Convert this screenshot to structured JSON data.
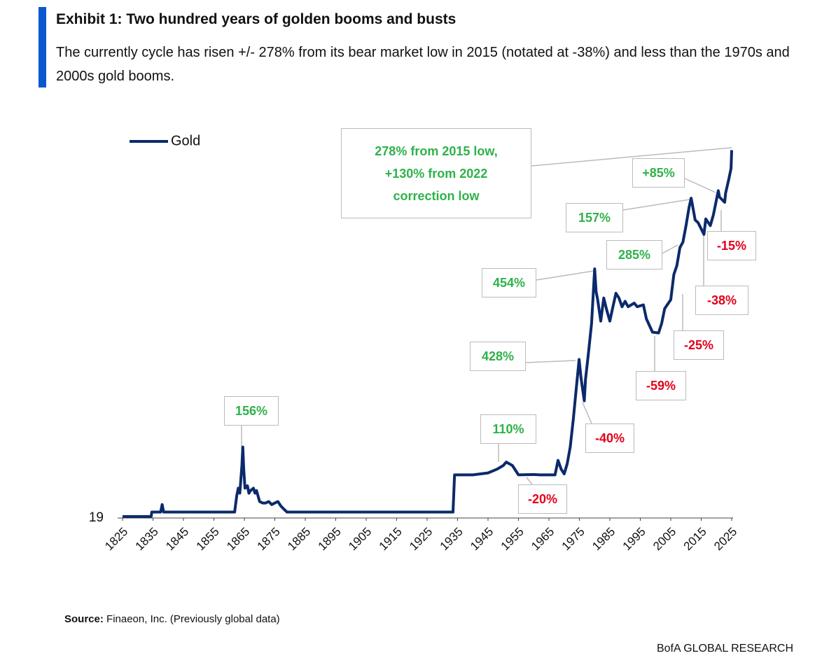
{
  "header": {
    "title": "Exhibit 1: Two hundred years of golden booms and busts",
    "subtitle": "The currently cycle has risen +/- 278% from its bear market low in 2015 (notated at -38%) and less than the 1970s and 2000s gold booms."
  },
  "chart_data": {
    "type": "line",
    "log_y": true,
    "x": [
      1825,
      1834.4,
      1834.6,
      1837.5,
      1838,
      1838.5,
      1861.8,
      1862.5,
      1863,
      1863.5,
      1864.2,
      1864.5,
      1864.8,
      1865.2,
      1866,
      1866.5,
      1867,
      1868,
      1868.5,
      1869,
      1870,
      1871,
      1872,
      1873,
      1874,
      1875,
      1876,
      1877,
      1878,
      1879,
      1933.5,
      1934,
      1940,
      1945,
      1948,
      1950,
      1951,
      1953,
      1955,
      1960,
      1962,
      1967,
      1968,
      1969,
      1970,
      1971,
      1972,
      1973,
      1974,
      1974.9,
      1975.5,
      1976.6,
      1977,
      1978,
      1979,
      1980,
      1980.5,
      1981,
      1982,
      1983,
      1984,
      1985,
      1986,
      1987,
      1988,
      1989,
      1990,
      1991,
      1993,
      1994,
      1996,
      1997,
      1999,
      2001,
      2002,
      2003,
      2005,
      2006,
      2007,
      2008,
      2009,
      2010,
      2011,
      2011.7,
      2012,
      2013,
      2014,
      2015.9,
      2016.5,
      2018,
      2019,
      2020.6,
      2021,
      2022.7,
      2023,
      2024,
      2024.8,
      2025
    ],
    "series": [
      {
        "name": "Gold",
        "color": "#0b2a6b",
        "values": [
          19.4,
          19.4,
          20.67,
          20.67,
          23,
          20.67,
          20.67,
          26,
          29,
          27,
          40,
          52,
          38,
          29,
          30,
          27,
          28,
          29,
          27,
          28,
          24,
          23.5,
          23.5,
          24,
          23,
          23.5,
          24,
          22.5,
          21.5,
          20.67,
          20.67,
          35,
          35,
          36,
          38,
          40,
          42,
          40,
          35,
          35.2,
          35,
          35,
          43,
          38,
          35.5,
          41,
          52,
          77,
          120,
          180,
          140,
          100,
          135,
          200,
          300,
          650,
          470,
          420,
          310,
          430,
          360,
          310,
          380,
          460,
          430,
          380,
          410,
          380,
          400,
          380,
          390,
          320,
          265,
          262,
          300,
          370,
          420,
          600,
          680,
          880,
          950,
          1200,
          1550,
          1770,
          1650,
          1300,
          1250,
          1060,
          1320,
          1200,
          1400,
          1970,
          1800,
          1670,
          1900,
          2300,
          2700,
          3500
        ]
      }
    ],
    "xlim": [
      1825,
      2025
    ],
    "xticks": [
      1825,
      1835,
      1845,
      1855,
      1865,
      1875,
      1885,
      1895,
      1905,
      1915,
      1925,
      1935,
      1945,
      1955,
      1965,
      1975,
      1985,
      1995,
      2005,
      2015,
      2025
    ],
    "ylim": [
      19,
      4000
    ],
    "yticks": [
      19
    ],
    "legend": "top-left",
    "annotations": [
      {
        "text": "278%  from 2015 low,\n+130% from 2022\ncorrection low",
        "color": "#2eb24a"
      },
      {
        "text": "+85%",
        "color": "#2eb24a"
      },
      {
        "text": "157%",
        "color": "#2eb24a"
      },
      {
        "text": "285%",
        "color": "#2eb24a"
      },
      {
        "text": "454%",
        "color": "#2eb24a"
      },
      {
        "text": "428%",
        "color": "#2eb24a"
      },
      {
        "text": "156%",
        "color": "#2eb24a"
      },
      {
        "text": "110%",
        "color": "#2eb24a"
      },
      {
        "text": "-15%",
        "color": "#e3001b"
      },
      {
        "text": "-38%",
        "color": "#e3001b"
      },
      {
        "text": "-25%",
        "color": "#e3001b"
      },
      {
        "text": "-59%",
        "color": "#e3001b"
      },
      {
        "text": "-40%",
        "color": "#e3001b"
      },
      {
        "text": "-20%",
        "color": "#e3001b"
      }
    ]
  },
  "footer": {
    "source_label": "Source:",
    "source_text": "Finaeon, Inc. (Previously global data)",
    "brand": "BofA GLOBAL RESEARCH"
  }
}
